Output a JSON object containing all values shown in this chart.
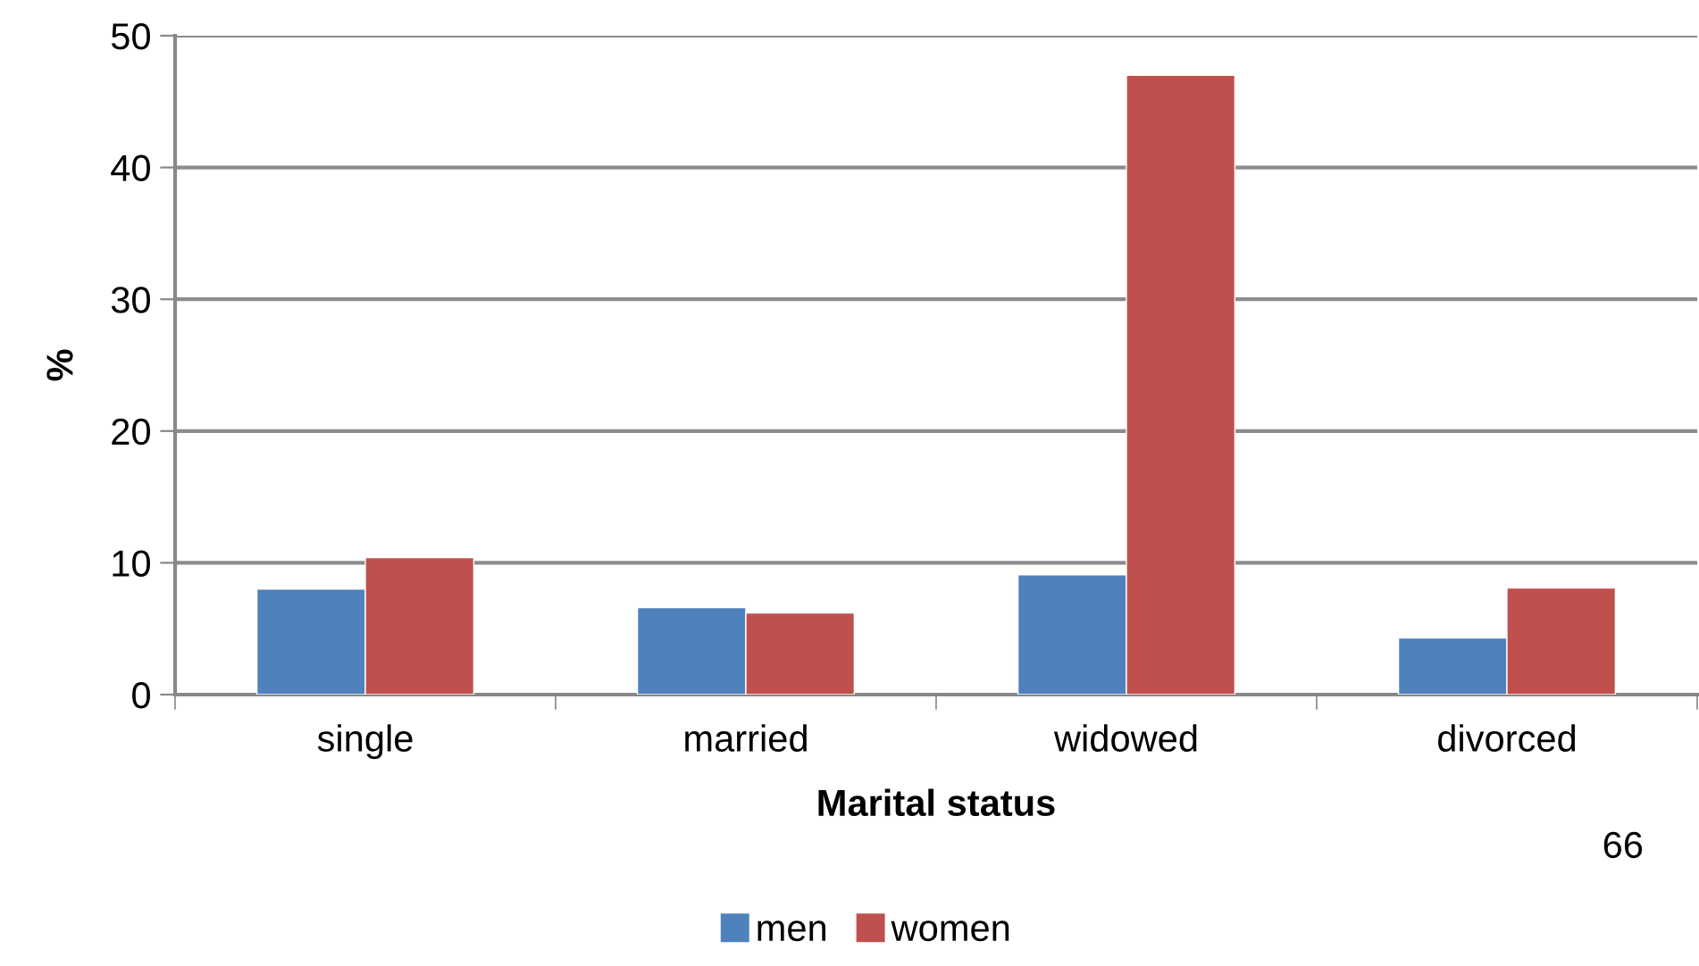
{
  "chart_data": {
    "type": "bar",
    "xlabel": "Marital status",
    "ylabel": "%",
    "categories": [
      "single",
      "married",
      "widowed",
      "divorced"
    ],
    "series": [
      {
        "name": "men",
        "color": "#4f81bd",
        "values": [
          8.0,
          6.6,
          9.1,
          4.3
        ]
      },
      {
        "name": "women",
        "color": "#c0504d",
        "values": [
          10.4,
          6.2,
          47.0,
          8.1
        ]
      }
    ],
    "ylim": [
      0,
      50
    ],
    "yticks": [
      0,
      10,
      20,
      30,
      40,
      50
    ],
    "grid": "y",
    "legend": "bottom",
    "annotations": [
      "66"
    ]
  }
}
